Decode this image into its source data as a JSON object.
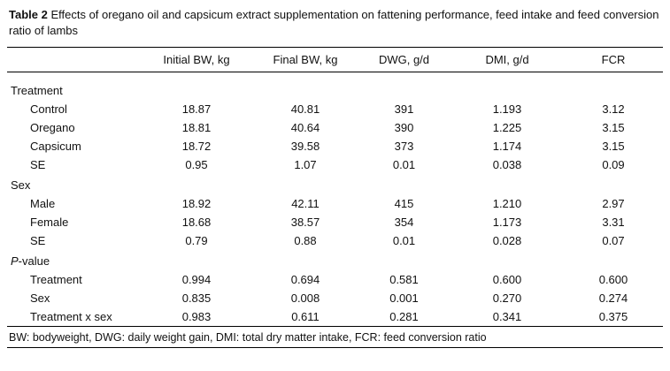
{
  "caption": {
    "label": "Table 2",
    "text": " Effects of oregano oil and capsicum extract supplementation on fattening performance, feed intake and feed conversion ratio of lambs"
  },
  "table": {
    "columns": [
      "",
      "Initial BW, kg",
      "Final BW, kg",
      "DWG, g/d",
      "DMI, g/d",
      "FCR"
    ],
    "sections": [
      {
        "header": "Treatment",
        "rows": [
          {
            "label": "Control",
            "values": [
              "18.87",
              "40.81",
              "391",
              "1.193",
              "3.12"
            ]
          },
          {
            "label": "Oregano",
            "values": [
              "18.81",
              "40.64",
              "390",
              "1.225",
              "3.15"
            ]
          },
          {
            "label": "Capsicum",
            "values": [
              "18.72",
              "39.58",
              "373",
              "1.174",
              "3.15"
            ]
          },
          {
            "label": "SE",
            "values": [
              "0.95",
              "1.07",
              "0.01",
              "0.038",
              "0.09"
            ]
          }
        ]
      },
      {
        "header": "Sex",
        "rows": [
          {
            "label": "Male",
            "values": [
              "18.92",
              "42.11",
              "415",
              "1.210",
              "2.97"
            ]
          },
          {
            "label": "Female",
            "values": [
              "18.68",
              "38.57",
              "354",
              "1.173",
              "3.31"
            ]
          },
          {
            "label": "SE",
            "values": [
              "0.79",
              "0.88",
              "0.01",
              "0.028",
              "0.07"
            ]
          }
        ]
      },
      {
        "header": "P-value",
        "italic_prefix": "P",
        "rows": [
          {
            "label": "Treatment",
            "values": [
              "0.994",
              "0.694",
              "0.581",
              "0.600",
              "0.600"
            ]
          },
          {
            "label": "Sex",
            "values": [
              "0.835",
              "0.008",
              "0.001",
              "0.270",
              "0.274"
            ]
          },
          {
            "label": "Treatment x sex",
            "values": [
              "0.983",
              "0.611",
              "0.281",
              "0.341",
              "0.375"
            ]
          }
        ]
      }
    ]
  },
  "footnote": "BW: bodyweight, DWG: daily weight gain, DMI: total dry matter intake, FCR: feed conversion ratio"
}
